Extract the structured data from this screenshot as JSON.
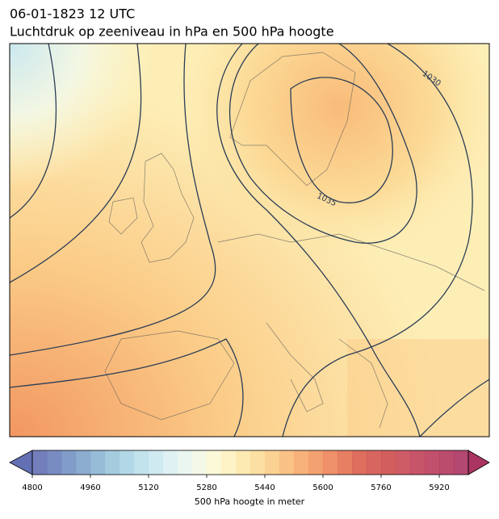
{
  "header": {
    "title": "06-01-1823 12 UTC",
    "subtitle": "Luchtdruk op zeeniveau in hPa en 500 hPa hoogte"
  },
  "contour_labels": [
    "1030",
    "1035"
  ],
  "colorbar": {
    "label": "500 hPa hoogte in meter",
    "lim": [
      4800,
      6000
    ],
    "ticks": [
      4800,
      4960,
      5120,
      5280,
      5440,
      5600,
      5760,
      5920
    ],
    "colors": [
      "#6470b4",
      "#6a80bb",
      "#7391c3",
      "#7fa3cb",
      "#8cb5d4",
      "#9bc5dc",
      "#aad3e3",
      "#bbdfea",
      "#cbe8ef",
      "#dbf0f2",
      "#e9f5ef",
      "#f3f7e3",
      "#fbf8d3",
      "#fdf2c0",
      "#fde8ab",
      "#fcdb98",
      "#fbcc88",
      "#f9bb79",
      "#f6a96c",
      "#f29761",
      "#ec8459",
      "#e47152",
      "#da5e4d",
      "#d3554f",
      "#cd4d4b",
      "#c84a55",
      "#c1435a",
      "#ba3d5c",
      "#b3385e",
      "#ab3460"
    ]
  }
}
